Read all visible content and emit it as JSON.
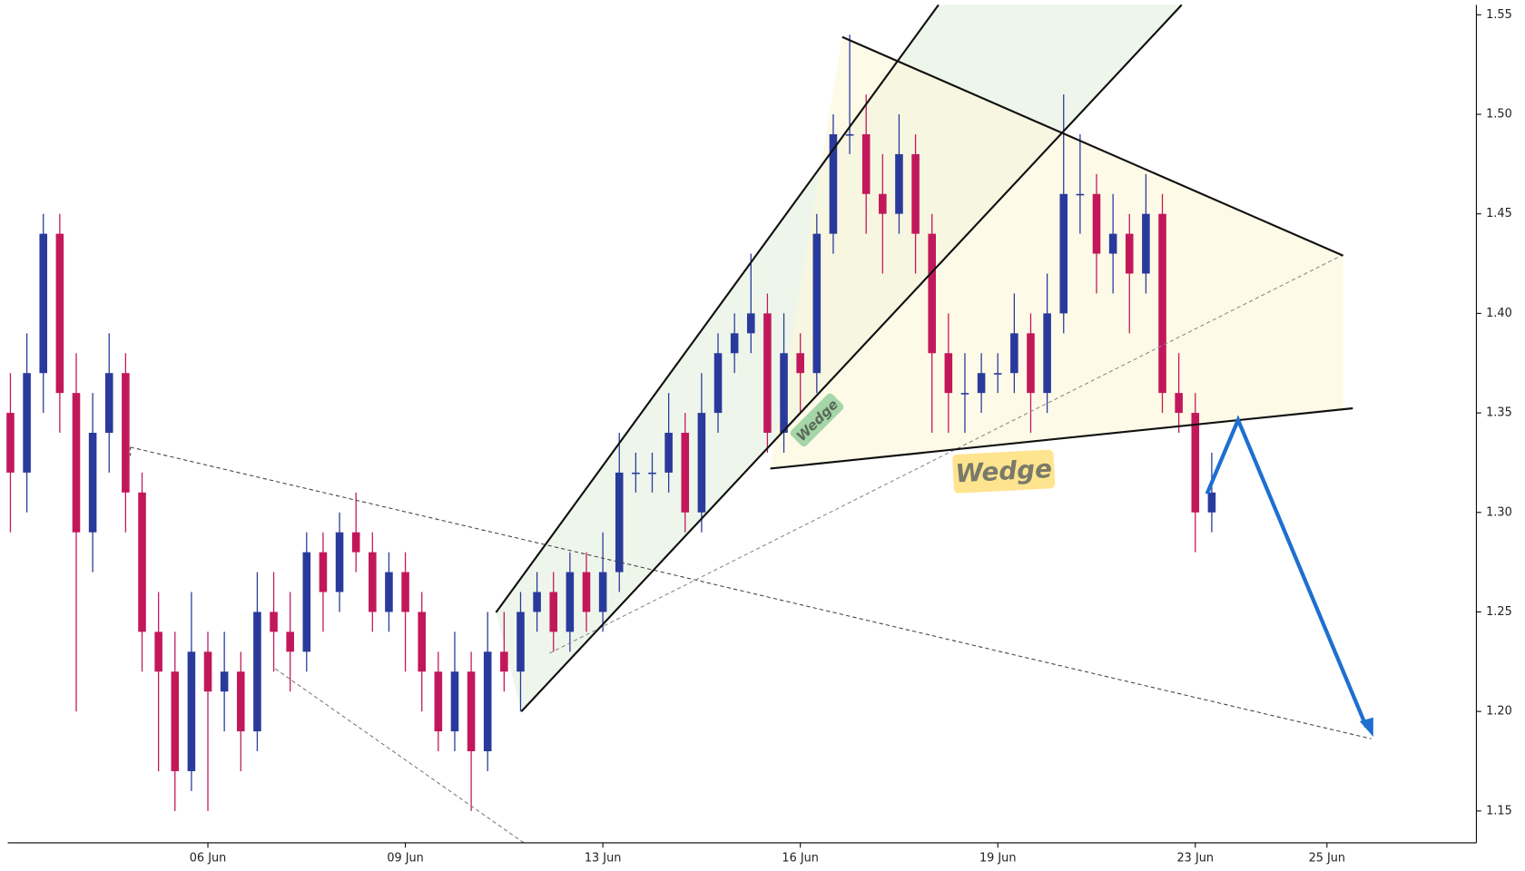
{
  "chart_data": {
    "type": "candlestick",
    "x": [
      -3,
      -2.75,
      -2.5,
      -2.25,
      -2,
      -1.75,
      -1.5,
      -1.25,
      -1,
      -0.75,
      -0.5,
      -0.25,
      0,
      0.25,
      0.5,
      0.75,
      1,
      1.25,
      1.5,
      1.75,
      2,
      2.25,
      2.5,
      2.75,
      3,
      3.25,
      3.5,
      3.75,
      4,
      4.25,
      4.5,
      4.75,
      5,
      5.25,
      5.5,
      5.75,
      6,
      6.25,
      6.5,
      6.75,
      7,
      7.25,
      7.5,
      7.75,
      8,
      8.25,
      8.5,
      8.75,
      9,
      9.25,
      9.5,
      9.75,
      10,
      10.25,
      10.5,
      10.75,
      11,
      11.25,
      11.5,
      11.75,
      12,
      12.25,
      12.5,
      12.75,
      13,
      13.25,
      13.5,
      13.75,
      14,
      14.25,
      14.5,
      14.75,
      15,
      15.25
    ],
    "open": [
      1.35,
      1.32,
      1.37,
      1.44,
      1.36,
      1.29,
      1.34,
      1.37,
      1.31,
      1.24,
      1.22,
      1.17,
      1.23,
      1.21,
      1.22,
      1.19,
      1.25,
      1.24,
      1.23,
      1.28,
      1.26,
      1.29,
      1.28,
      1.25,
      1.27,
      1.25,
      1.22,
      1.19,
      1.22,
      1.18,
      1.23,
      1.22,
      1.25,
      1.26,
      1.24,
      1.27,
      1.25,
      1.27,
      1.32,
      1.32,
      1.32,
      1.34,
      1.3,
      1.35,
      1.38,
      1.39,
      1.4,
      1.34,
      1.38,
      1.37,
      1.44,
      1.49,
      1.49,
      1.46,
      1.45,
      1.48,
      1.44,
      1.38,
      1.36,
      1.36,
      1.37,
      1.37,
      1.39,
      1.36,
      1.4,
      1.46,
      1.46,
      1.43,
      1.44,
      1.42,
      1.45,
      1.36,
      1.35,
      1.3
    ],
    "high": [
      1.37,
      1.39,
      1.45,
      1.45,
      1.38,
      1.36,
      1.39,
      1.38,
      1.32,
      1.26,
      1.24,
      1.26,
      1.24,
      1.24,
      1.23,
      1.27,
      1.27,
      1.26,
      1.29,
      1.29,
      1.3,
      1.31,
      1.29,
      1.28,
      1.28,
      1.26,
      1.23,
      1.24,
      1.23,
      1.25,
      1.25,
      1.26,
      1.27,
      1.27,
      1.28,
      1.28,
      1.29,
      1.34,
      1.33,
      1.33,
      1.36,
      1.35,
      1.37,
      1.39,
      1.4,
      1.43,
      1.41,
      1.4,
      1.39,
      1.45,
      1.5,
      1.54,
      1.51,
      1.48,
      1.5,
      1.49,
      1.45,
      1.4,
      1.38,
      1.38,
      1.38,
      1.41,
      1.4,
      1.42,
      1.51,
      1.49,
      1.47,
      1.46,
      1.45,
      1.47,
      1.46,
      1.38,
      1.36,
      1.33
    ],
    "low": [
      1.29,
      1.3,
      1.35,
      1.34,
      1.2,
      1.27,
      1.32,
      1.29,
      1.22,
      1.17,
      1.15,
      1.16,
      1.15,
      1.19,
      1.17,
      1.18,
      1.22,
      1.21,
      1.22,
      1.24,
      1.25,
      1.27,
      1.24,
      1.24,
      1.22,
      1.2,
      1.18,
      1.18,
      1.15,
      1.17,
      1.21,
      1.2,
      1.24,
      1.23,
      1.23,
      1.24,
      1.24,
      1.26,
      1.31,
      1.31,
      1.31,
      1.29,
      1.29,
      1.34,
      1.37,
      1.38,
      1.33,
      1.33,
      1.35,
      1.36,
      1.43,
      1.48,
      1.44,
      1.42,
      1.44,
      1.42,
      1.34,
      1.34,
      1.34,
      1.35,
      1.36,
      1.36,
      1.34,
      1.35,
      1.39,
      1.44,
      1.41,
      1.41,
      1.39,
      1.41,
      1.35,
      1.34,
      1.28,
      1.29
    ],
    "close": [
      1.32,
      1.37,
      1.44,
      1.36,
      1.29,
      1.34,
      1.37,
      1.31,
      1.24,
      1.22,
      1.17,
      1.23,
      1.21,
      1.22,
      1.19,
      1.25,
      1.24,
      1.23,
      1.28,
      1.26,
      1.29,
      1.28,
      1.25,
      1.27,
      1.25,
      1.22,
      1.19,
      1.22,
      1.18,
      1.23,
      1.22,
      1.25,
      1.26,
      1.24,
      1.27,
      1.25,
      1.27,
      1.32,
      1.32,
      1.32,
      1.34,
      1.3,
      1.35,
      1.38,
      1.39,
      1.4,
      1.34,
      1.38,
      1.37,
      1.44,
      1.49,
      1.49,
      1.46,
      1.45,
      1.48,
      1.44,
      1.38,
      1.36,
      1.36,
      1.37,
      1.37,
      1.39,
      1.36,
      1.4,
      1.46,
      1.46,
      1.43,
      1.44,
      1.42,
      1.45,
      1.36,
      1.35,
      1.3,
      1.31
    ],
    "up_color": "#2a3a9c",
    "down_color": "#c2185b",
    "xlim": [
      -3.04,
      19.27
    ],
    "ylim": [
      1.134,
      1.555
    ],
    "xticks": [
      {
        "value": 0,
        "label": "06 Jun"
      },
      {
        "value": 3,
        "label": "09 Jun"
      },
      {
        "value": 6,
        "label": "13 Jun"
      },
      {
        "value": 9,
        "label": "16 Jun"
      },
      {
        "value": 12,
        "label": "19 Jun"
      },
      {
        "value": 15,
        "label": "23 Jun"
      },
      {
        "value": 17,
        "label": "25 Jun"
      }
    ],
    "yticks": [
      1.15,
      {
        "value": 1.2,
        "label": "1.20"
      },
      1.25,
      {
        "value": 1.3,
        "label": "1.30"
      },
      1.35,
      {
        "value": 1.4,
        "label": "1.40"
      },
      1.45,
      {
        "value": 1.5,
        "label": "1.50"
      },
      1.55
    ],
    "annotations": [
      "Wedge",
      "Wedge"
    ]
  }
}
